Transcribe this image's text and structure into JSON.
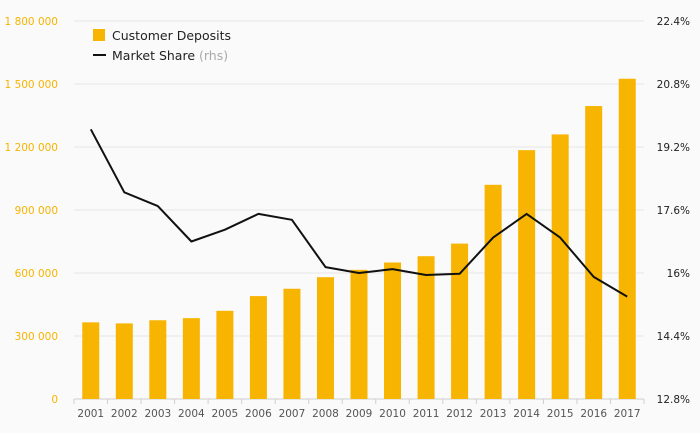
{
  "chart_data": {
    "type": "bar",
    "categories": [
      "2001",
      "2002",
      "2003",
      "2004",
      "2005",
      "2006",
      "2007",
      "2008",
      "2009",
      "2010",
      "2011",
      "2012",
      "2013",
      "2014",
      "2015",
      "2016",
      "2017"
    ],
    "series": [
      {
        "name": "Customer Deposits",
        "type": "bar",
        "axis": "left",
        "color": "#f7b400",
        "values": [
          365000,
          360000,
          375000,
          385000,
          420000,
          490000,
          525000,
          580000,
          615000,
          650000,
          680000,
          740000,
          1020000,
          1185000,
          1260000,
          1395000,
          1525000
        ]
      },
      {
        "name": "Market Share",
        "name_suffix": "(rhs)",
        "type": "line",
        "axis": "right",
        "color": "#111111",
        "values": [
          19.65,
          18.05,
          17.7,
          16.8,
          17.1,
          17.5,
          17.35,
          16.15,
          16.0,
          16.1,
          15.95,
          15.98,
          16.9,
          17.5,
          16.9,
          15.9,
          15.4
        ]
      }
    ],
    "y_left": {
      "min": 0,
      "max": 1800000,
      "ticks": [
        0,
        300000,
        600000,
        900000,
        1200000,
        1500000,
        1800000
      ],
      "tick_labels": [
        "0",
        "300 000",
        "600 000",
        "900 000",
        "1 200 000",
        "1 500 000",
        "1 800 000"
      ],
      "color": "#f7b400"
    },
    "y_right": {
      "min": 12.8,
      "max": 22.4,
      "ticks": [
        12.8,
        14.4,
        16,
        17.6,
        19.2,
        20.8,
        22.4
      ],
      "tick_labels": [
        "12.8%",
        "14.4%",
        "16%",
        "17.6%",
        "19.2%",
        "20.8%",
        "22.4%"
      ],
      "color": "#222222"
    },
    "legend": {
      "position": "top-left",
      "items": [
        {
          "label": "Customer Deposits",
          "suffix": ""
        },
        {
          "label": "Market Share",
          "suffix": "(rhs)"
        }
      ]
    },
    "grid": true
  }
}
